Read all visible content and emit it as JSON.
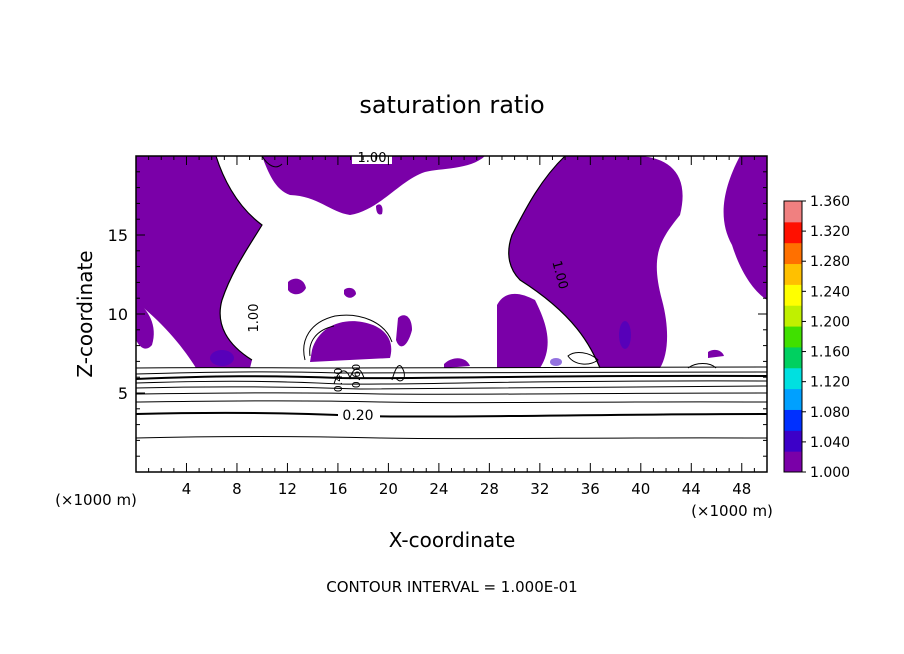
{
  "chart_data": {
    "type": "heatmap",
    "title": "saturation ratio",
    "xlabel": "X-coordinate",
    "ylabel": "Z-coordinate",
    "x_unit_label_left": "(×1000 m)",
    "x_unit_label_right": "(×1000 m)",
    "xlim": [
      0,
      50
    ],
    "ylim": [
      0,
      20
    ],
    "x_ticks": [
      4,
      8,
      12,
      16,
      20,
      24,
      28,
      32,
      36,
      40,
      44,
      48
    ],
    "y_ticks": [
      5,
      10,
      15
    ],
    "colorbar": {
      "min": 1.0,
      "max": 1.36,
      "ticks": [
        "1.360",
        "1.320",
        "1.280",
        "1.240",
        "1.200",
        "1.160",
        "1.120",
        "1.080",
        "1.040",
        "1.000"
      ],
      "colors": [
        "#7a00a8",
        "#3c00c8",
        "#0030ff",
        "#00a0ff",
        "#00e0e0",
        "#00d060",
        "#40e000",
        "#c0f000",
        "#ffff00",
        "#ffc000",
        "#ff7000",
        "#ff1000",
        "#f08080"
      ]
    },
    "contour_labels": [
      {
        "text": "1.00",
        "x": 17.5,
        "z": 19.6
      },
      {
        "text": "1.00",
        "x": 9.0,
        "z": 10.0
      },
      {
        "text": "1.00",
        "x": 33.0,
        "z": 12.5
      },
      {
        "text": "0.20",
        "x": 17.5,
        "z": 3.6
      },
      {
        "text": "0.40",
        "x": 16.5,
        "z": 5.7
      },
      {
        "text": "0.60",
        "x": 17.5,
        "z": 6.0
      }
    ],
    "contour_levels_below_z": [
      2.2,
      3.7,
      4.4,
      4.9,
      5.3,
      5.6,
      5.9,
      6.2,
      6.6
    ],
    "annotation": "CONTOUR INTERVAL = 1.000E-01"
  }
}
